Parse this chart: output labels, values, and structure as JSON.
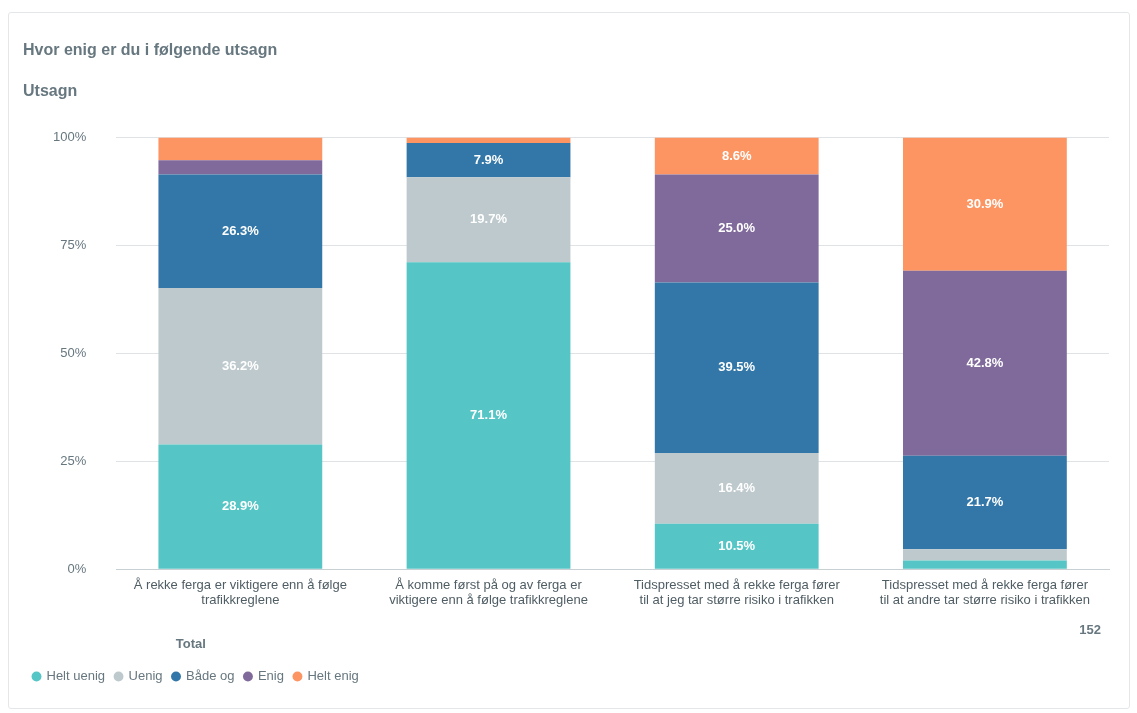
{
  "chart_data": {
    "type": "bar",
    "title": "Hvor enig er du i følgende utsagn",
    "subtitle": "Utsagn",
    "categories": [
      "Å rekke ferga er viktigere enn å følge trafikkreglene",
      "Å komme først på og av ferga er viktigere enn å følge trafikkreglene",
      "Tidspresset med å rekke ferga fører til at jeg tar større risiko i trafikken",
      "Tidspresset med å rekke ferga fører til at andre tar større risiko i trafikken"
    ],
    "stacked": true,
    "series": [
      {
        "name": "Helt uenig",
        "color": "#56c5c5",
        "values": [
          28.9,
          71.1,
          10.5,
          2.0
        ],
        "value_labels": [
          "28.9%",
          "71.1%",
          "10.5%",
          null
        ]
      },
      {
        "name": "Uenig",
        "color": "#bec9cd",
        "values": [
          36.2,
          19.7,
          16.4,
          2.6
        ],
        "value_labels": [
          "36.2%",
          "19.7%",
          "16.4%",
          null
        ]
      },
      {
        "name": "Både og",
        "color": "#3277a8",
        "values": [
          26.3,
          7.9,
          39.5,
          21.7
        ],
        "value_labels": [
          "26.3%",
          "7.9%",
          "39.5%",
          "21.7%"
        ]
      },
      {
        "name": "Enig",
        "color": "#7f6a9b",
        "values": [
          3.3,
          0,
          25.0,
          42.8
        ],
        "value_labels": [
          null,
          null,
          "25.0%",
          "42.8%"
        ]
      },
      {
        "name": "Helt enig",
        "color": "#fd9563",
        "values": [
          5.3,
          1.3,
          8.6,
          30.9
        ],
        "value_labels": [
          null,
          null,
          "8.6%",
          "30.9%"
        ]
      }
    ],
    "ylim": [
      0,
      100
    ],
    "yticks": [
      {
        "value": 0,
        "label": "0%"
      },
      {
        "value": 25,
        "label": "25%"
      },
      {
        "value": 50,
        "label": "50%"
      },
      {
        "value": 75,
        "label": "75%"
      },
      {
        "value": 100,
        "label": "100%"
      }
    ],
    "grid": "y",
    "legend": "bottom left",
    "annotations": [
      "Total",
      "152"
    ]
  }
}
